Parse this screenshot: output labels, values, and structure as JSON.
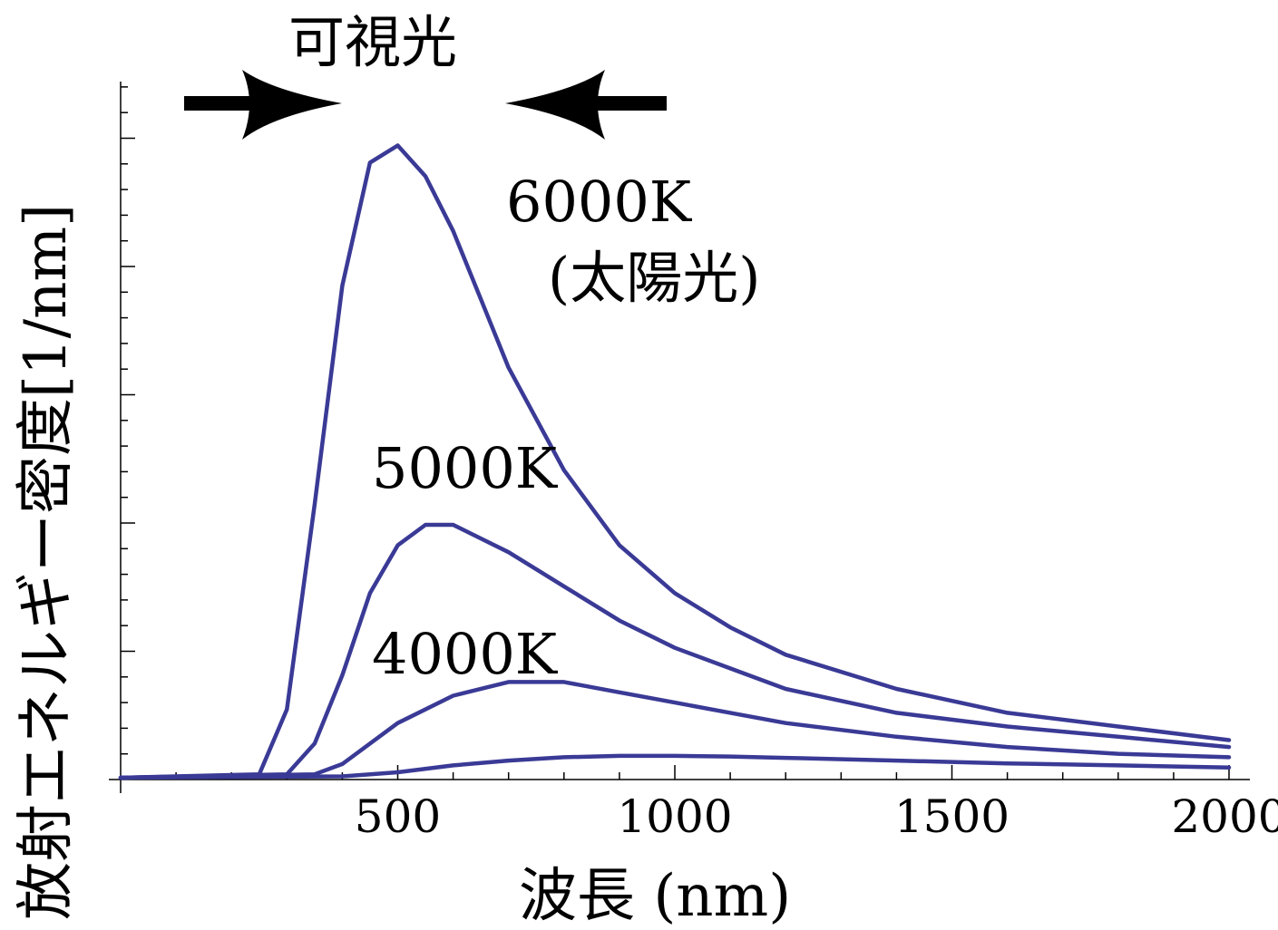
{
  "chart_data": {
    "type": "line",
    "xlabel": "波長 (nm)",
    "ylabel": "放射エネルギー密度[1/nm]",
    "xlim": [
      0,
      2000
    ],
    "ylim": [
      0,
      1
    ],
    "x_ticks": [
      500,
      1000,
      1500,
      2000
    ],
    "grid": false,
    "line_color": "#3a3a96",
    "series": [
      {
        "x": [
          0,
          250,
          300,
          350,
          400,
          450,
          500,
          550,
          600,
          650,
          700,
          800,
          900,
          1000,
          1100,
          1200,
          1400,
          1600,
          1800,
          2000
        ],
        "y": [
          0,
          0.005,
          0.1,
          0.4,
          0.72,
          0.9,
          0.925,
          0.88,
          0.8,
          0.7,
          0.6,
          0.45,
          0.34,
          0.27,
          0.22,
          0.18,
          0.13,
          0.095,
          0.075,
          0.055
        ]
      },
      {
        "x": [
          0,
          300,
          350,
          400,
          450,
          500,
          550,
          600,
          650,
          700,
          800,
          900,
          1000,
          1100,
          1200,
          1400,
          1600,
          1800,
          2000
        ],
        "y": [
          0,
          0.005,
          0.05,
          0.15,
          0.27,
          0.34,
          0.37,
          0.37,
          0.35,
          0.33,
          0.28,
          0.23,
          0.19,
          0.16,
          0.13,
          0.095,
          0.075,
          0.06,
          0.045
        ]
      },
      {
        "x": [
          0,
          350,
          400,
          500,
          600,
          700,
          800,
          900,
          1000,
          1100,
          1200,
          1400,
          1600,
          1800,
          2000
        ],
        "y": [
          0,
          0.005,
          0.02,
          0.08,
          0.12,
          0.14,
          0.14,
          0.125,
          0.11,
          0.095,
          0.08,
          0.06,
          0.045,
          0.035,
          0.03
        ]
      },
      {
        "x": [
          0,
          400,
          500,
          600,
          700,
          800,
          900,
          1000,
          1100,
          1200,
          1400,
          1600,
          1800,
          2000
        ],
        "y": [
          0,
          0.002,
          0.008,
          0.018,
          0.025,
          0.03,
          0.032,
          0.032,
          0.031,
          0.029,
          0.025,
          0.021,
          0.018,
          0.015
        ]
      }
    ],
    "annotations": {
      "visible": "可視光",
      "t6000": "6000K",
      "sun": "(太陽光)",
      "t5000": "5000K",
      "t4000": "4000K"
    }
  }
}
